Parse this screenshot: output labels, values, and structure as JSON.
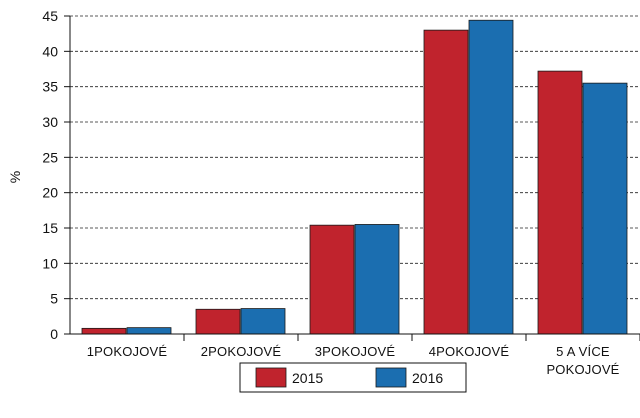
{
  "chart_data": {
    "type": "bar",
    "categories": [
      [
        "1POKOJOVÉ"
      ],
      [
        "2POKOJOVÉ"
      ],
      [
        "3POKOJOVÉ"
      ],
      [
        "4POKOJOVÉ"
      ],
      [
        "5 A VÍCE",
        "POKOJOVÉ"
      ]
    ],
    "series": [
      {
        "name": "2015",
        "color": "#c0232d",
        "values": [
          0.8,
          3.5,
          15.4,
          43.0,
          37.2
        ]
      },
      {
        "name": "2016",
        "color": "#1b6eb0",
        "values": [
          0.9,
          3.6,
          15.5,
          44.4,
          35.5
        ]
      }
    ],
    "title": "",
    "xlabel": "",
    "ylabel": "%",
    "ylim": [
      0,
      45
    ],
    "yticks": [
      0,
      5,
      10,
      15,
      20,
      25,
      30,
      35,
      40,
      45
    ],
    "grid": "horizontal-dashed",
    "legend": "bottom-center"
  }
}
